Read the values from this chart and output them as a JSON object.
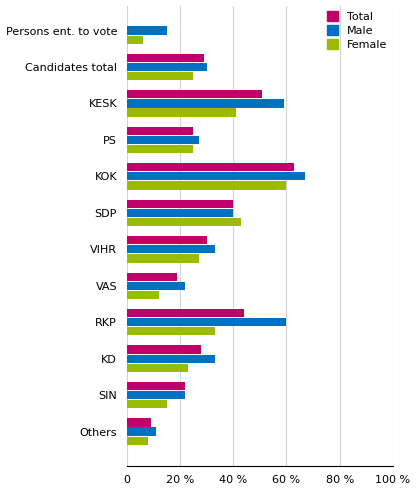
{
  "categories": [
    "Persons ent. to vote",
    "Candidates total",
    "KESK",
    "PS",
    "KOK",
    "SDP",
    "VIHR",
    "VAS",
    "RKP",
    "KD",
    "SIN",
    "Others"
  ],
  "total": [
    null,
    29,
    51,
    25,
    63,
    40,
    30,
    19,
    44,
    28,
    22,
    9
  ],
  "male": [
    15,
    30,
    59,
    27,
    67,
    40,
    33,
    22,
    60,
    33,
    22,
    11
  ],
  "female": [
    6,
    25,
    41,
    25,
    60,
    43,
    27,
    12,
    33,
    23,
    15,
    8
  ],
  "color_total": "#c0006a",
  "color_male": "#0070c0",
  "color_female": "#9BBB00",
  "xlabel_ticks": [
    0,
    20,
    40,
    60,
    80,
    100
  ],
  "xlabel_labels": [
    "0",
    "20 %",
    "40 %",
    "60 %",
    "80 %",
    "100 %"
  ],
  "legend_labels": [
    "Total",
    "Male",
    "Female"
  ],
  "bar_height": 0.25,
  "figsize": [
    4.16,
    4.91
  ],
  "dpi": 100
}
